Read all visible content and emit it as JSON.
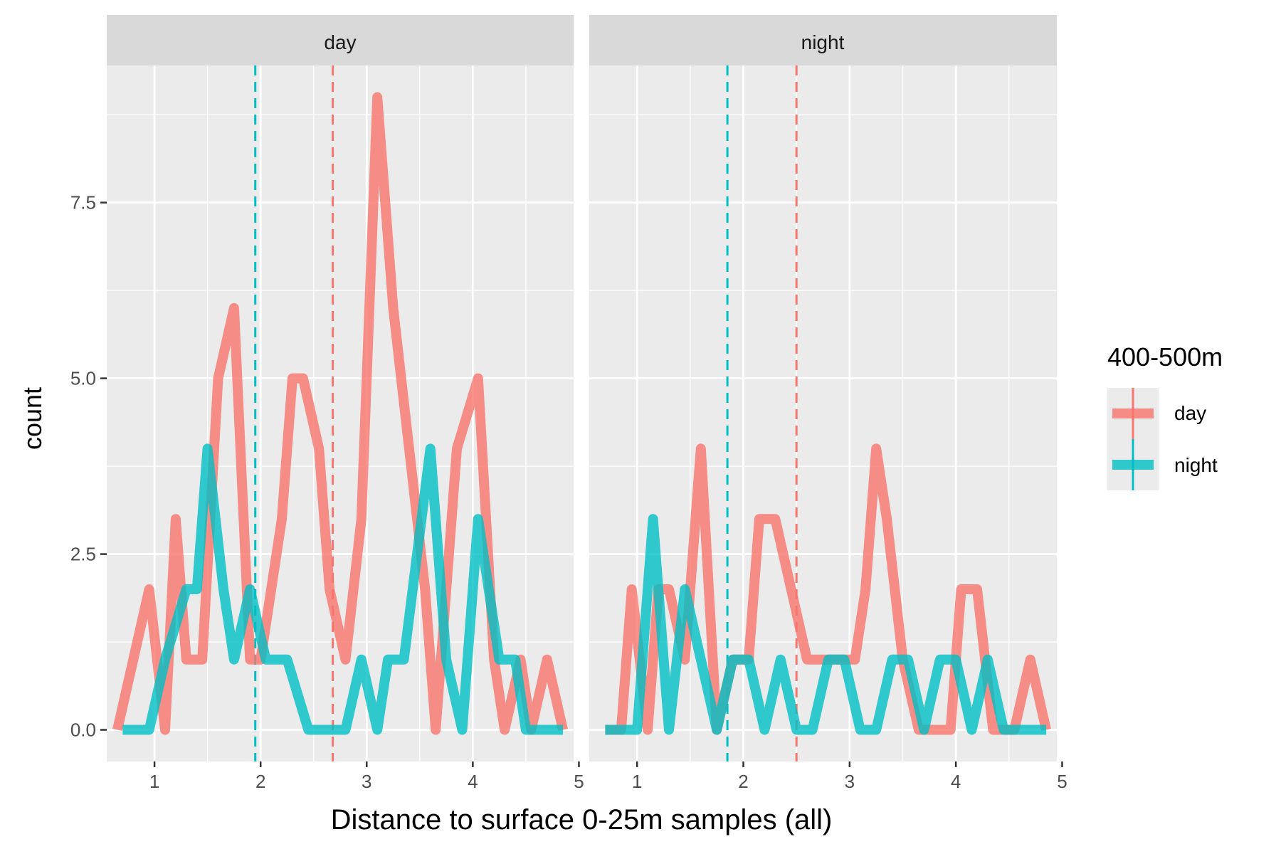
{
  "chart_data": {
    "type": "line",
    "xlabel": "Distance to surface 0-25m samples (all)",
    "ylabel": "count",
    "xlim": [
      0.55,
      4.95
    ],
    "ylim": [
      -0.45,
      9.45
    ],
    "x_ticks": [
      1,
      2,
      3,
      4,
      5
    ],
    "x_tick_labels": [
      "1",
      "2",
      "3",
      "4",
      "5"
    ],
    "y_ticks": [
      0,
      2.5,
      5,
      7.5
    ],
    "y_tick_labels": [
      "0.0",
      "2.5",
      "5.0",
      "7.5"
    ],
    "grid": true,
    "legend": {
      "title": "400-500m",
      "placement": "right",
      "entries": [
        "day",
        "night"
      ]
    },
    "colors": {
      "day": "#F8766D",
      "night": "#00BFC4"
    },
    "panels": [
      {
        "label": "day",
        "series": [
          {
            "name": "day",
            "x": [
              0.65,
              0.8,
              0.95,
              1.1,
              1.2,
              1.3,
              1.45,
              1.6,
              1.75,
              1.9,
              2.0,
              2.2,
              2.3,
              2.4,
              2.55,
              2.65,
              2.8,
              2.95,
              3.1,
              3.25,
              3.4,
              3.55,
              3.65,
              3.85,
              4.05,
              4.2,
              4.3,
              4.45,
              4.55,
              4.7,
              4.85
            ],
            "values": [
              0,
              1,
              2,
              0,
              3,
              1,
              1,
              5,
              6,
              1,
              1,
              3,
              5,
              5,
              4,
              2,
              1,
              3,
              9,
              6,
              4,
              2,
              0,
              4,
              5,
              1,
              0,
              1,
              0,
              1,
              0
            ]
          },
          {
            "name": "night",
            "x": [
              0.7,
              0.95,
              1.1,
              1.3,
              1.4,
              1.5,
              1.65,
              1.75,
              1.9,
              2.05,
              2.25,
              2.45,
              2.6,
              2.8,
              2.95,
              3.1,
              3.2,
              3.35,
              3.6,
              3.75,
              3.9,
              4.05,
              4.25,
              4.4,
              4.5,
              4.65,
              4.85
            ],
            "values": [
              0,
              0,
              1,
              2,
              2,
              4,
              2,
              1,
              2,
              1,
              1,
              0,
              0,
              0,
              1,
              0,
              1,
              1,
              4,
              1,
              0,
              3,
              1,
              1,
              0,
              0,
              0
            ]
          }
        ],
        "means": {
          "day": 2.68,
          "night": 1.95
        }
      },
      {
        "label": "night",
        "series": [
          {
            "name": "day",
            "x": [
              0.7,
              0.85,
              0.95,
              1.1,
              1.2,
              1.3,
              1.45,
              1.6,
              1.75,
              1.9,
              2.05,
              2.15,
              2.3,
              2.45,
              2.6,
              2.75,
              2.9,
              3.05,
              3.15,
              3.25,
              3.35,
              3.5,
              3.65,
              3.8,
              3.95,
              4.05,
              4.2,
              4.35,
              4.55,
              4.7,
              4.85
            ],
            "values": [
              0,
              0,
              2,
              0,
              2,
              2,
              1,
              4,
              0,
              1,
              1,
              3,
              3,
              2,
              1,
              1,
              1,
              1,
              2,
              4,
              3,
              1,
              0,
              0,
              0,
              2,
              2,
              0,
              0,
              1,
              0
            ]
          },
          {
            "name": "night",
            "x": [
              0.7,
              0.85,
              1.0,
              1.15,
              1.3,
              1.45,
              1.6,
              1.75,
              1.9,
              2.05,
              2.2,
              2.35,
              2.5,
              2.65,
              2.8,
              2.95,
              3.1,
              3.25,
              3.4,
              3.55,
              3.7,
              3.85,
              4.0,
              4.15,
              4.3,
              4.45,
              4.6,
              4.75,
              4.85
            ],
            "values": [
              0,
              0,
              0,
              3,
              0,
              2,
              1,
              0,
              1,
              1,
              0,
              1,
              0,
              0,
              1,
              1,
              0,
              0,
              1,
              1,
              0,
              1,
              1,
              0,
              1,
              0,
              0,
              0,
              0
            ]
          }
        ],
        "means": {
          "day": 2.5,
          "night": 1.85
        }
      }
    ]
  }
}
